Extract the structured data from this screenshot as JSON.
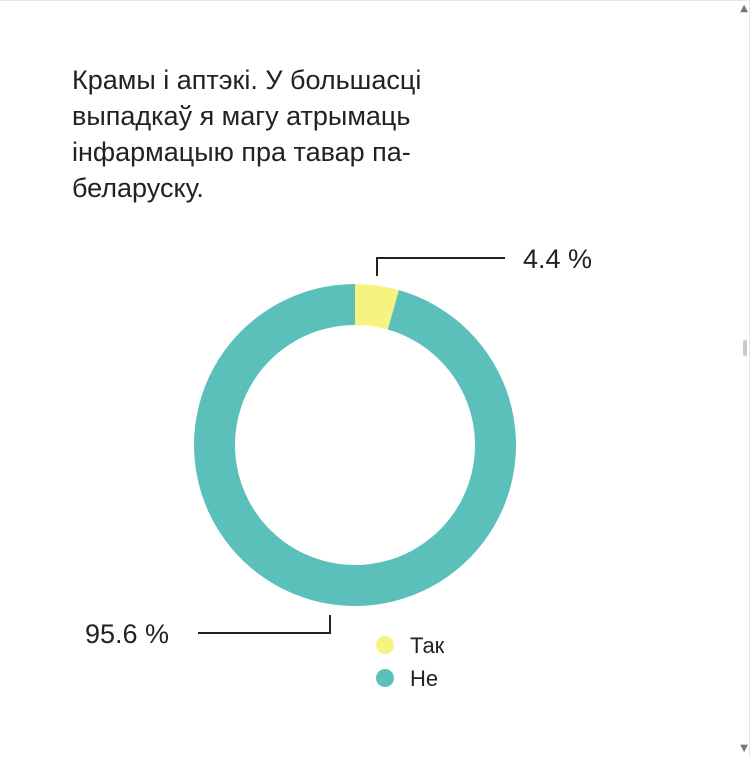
{
  "chart_data": {
    "type": "pie",
    "style": "donut",
    "title": "Крамы і аптэкі. У большасці выпадкаў я магу атрымаць інфармацыю пра тавар па-беларуску.",
    "slices": [
      {
        "name": "Так",
        "value": 4.4,
        "label": "4.4 %",
        "color": "#F7F381"
      },
      {
        "name": "Не",
        "value": 95.6,
        "label": "95.6 %",
        "color": "#5BC0BA"
      }
    ],
    "legend": {
      "position": "bottom-center",
      "items": [
        "Так",
        "Не"
      ]
    }
  },
  "icons": {
    "scroll_up": "chevron-up-icon",
    "scroll_down": "chevron-down-icon"
  }
}
